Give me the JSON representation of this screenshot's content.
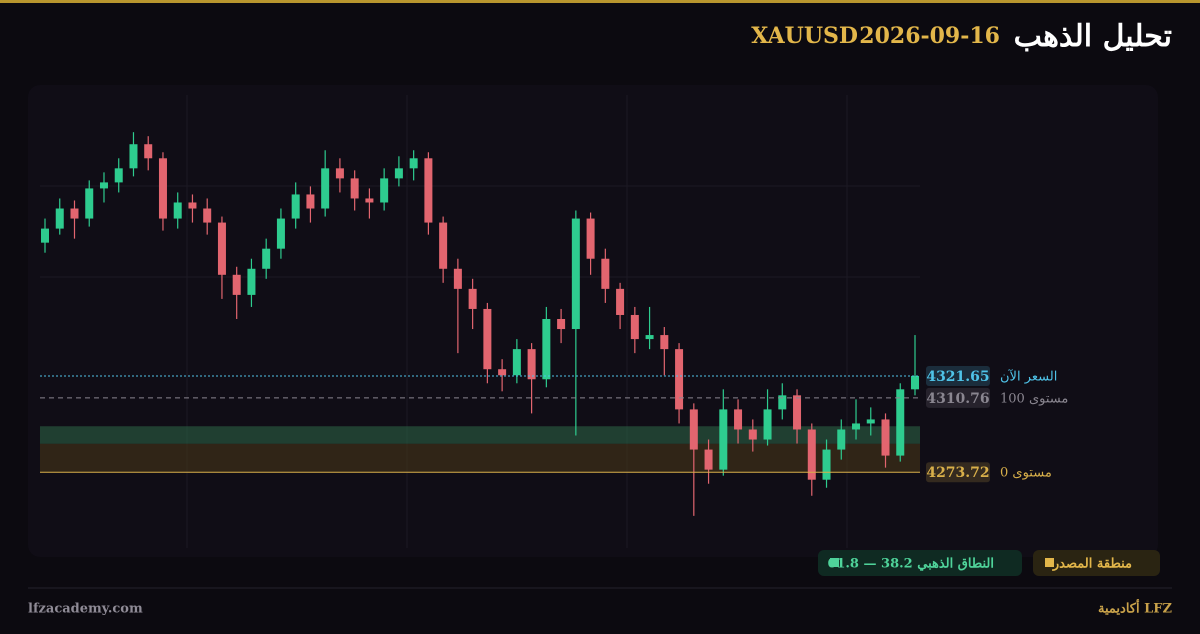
{
  "header": {
    "title": "تحليل الذهب",
    "date": "2026-09-16",
    "symbol": "XAUUSD"
  },
  "chart_data": {
    "type": "candlestick",
    "up_color": "#2ecc8f",
    "down_color": "#e2656f",
    "ylim": [
      4236,
      4463
    ],
    "open": [
      4388,
      4395,
      4405,
      4400,
      4415,
      4418,
      4425,
      4437,
      4430,
      4400,
      4408,
      4405,
      4398,
      4372,
      4362,
      4375,
      4385,
      4400,
      4412,
      4405,
      4425,
      4420,
      4410,
      4408,
      4420,
      4425,
      4430,
      4398,
      4375,
      4365,
      4355,
      4325,
      4322,
      4335,
      4320,
      4350,
      4345,
      4400,
      4380,
      4365,
      4352,
      4340,
      4342,
      4335,
      4305,
      4285,
      4275,
      4305,
      4295,
      4290,
      4305,
      4312,
      4295,
      4270,
      4285,
      4295,
      4298,
      4300,
      4282,
      4315
    ],
    "high": [
      4400,
      4410,
      4409,
      4419,
      4423,
      4430,
      4443,
      4441,
      4433,
      4413,
      4412,
      4410,
      4401,
      4376,
      4380,
      4390,
      4405,
      4418,
      4416,
      4434,
      4430,
      4424,
      4415,
      4425,
      4431,
      4434,
      4433,
      4401,
      4380,
      4370,
      4358,
      4330,
      4340,
      4338,
      4356,
      4355,
      4404,
      4403,
      4385,
      4368,
      4356,
      4356,
      4346,
      4338,
      4308,
      4290,
      4315,
      4310,
      4300,
      4315,
      4318,
      4315,
      4298,
      4290,
      4300,
      4310,
      4306,
      4303,
      4318,
      4342
    ],
    "low": [
      4383,
      4392,
      4390,
      4396,
      4408,
      4413,
      4421,
      4424,
      4394,
      4395,
      4398,
      4392,
      4360,
      4350,
      4356,
      4370,
      4380,
      4395,
      4398,
      4401,
      4413,
      4404,
      4400,
      4404,
      4416,
      4419,
      4392,
      4368,
      4333,
      4345,
      4318,
      4314,
      4318,
      4303,
      4316,
      4338,
      4292,
      4372,
      4358,
      4345,
      4333,
      4335,
      4322,
      4298,
      4252,
      4268,
      4272,
      4288,
      4284,
      4287,
      4300,
      4288,
      4262,
      4266,
      4280,
      4290,
      4292,
      4276,
      4279,
      4312
    ],
    "close": [
      4395,
      4405,
      4400,
      4415,
      4418,
      4425,
      4437,
      4430,
      4400,
      4408,
      4405,
      4398,
      4372,
      4362,
      4375,
      4385,
      4400,
      4412,
      4405,
      4425,
      4420,
      4410,
      4408,
      4420,
      4425,
      4430,
      4398,
      4375,
      4365,
      4355,
      4325,
      4322,
      4335,
      4320,
      4350,
      4345,
      4400,
      4380,
      4365,
      4352,
      4340,
      4342,
      4335,
      4305,
      4285,
      4275,
      4305,
      4295,
      4290,
      4305,
      4312,
      4295,
      4270,
      4285,
      4295,
      4298,
      4300,
      4282,
      4315,
      4321.65
    ],
    "levels": [
      {
        "name": "السعر الآن",
        "value": 4321.65,
        "color": "#4fc3e8",
        "style": "dotted"
      },
      {
        "name": "مستوى 100",
        "value": 4310.76,
        "color": "#8a8690",
        "style": "dashed"
      },
      {
        "name": "مستوى 0",
        "value": 4273.72,
        "color": "#d9b04a",
        "style": "solid"
      }
    ],
    "zones": [
      {
        "name": "النطاق الذهبي 38.2 — 61.8",
        "range": [
          4287.87,
          4296.61
        ],
        "color": "#2e6a48"
      },
      {
        "name": "منطقة المصدر",
        "range": [
          4273.72,
          4287.87
        ],
        "color": "#4a3a1a"
      }
    ]
  },
  "footer": {
    "site": "lfzacademy.com",
    "brand": "LFZ أكاديمية"
  }
}
